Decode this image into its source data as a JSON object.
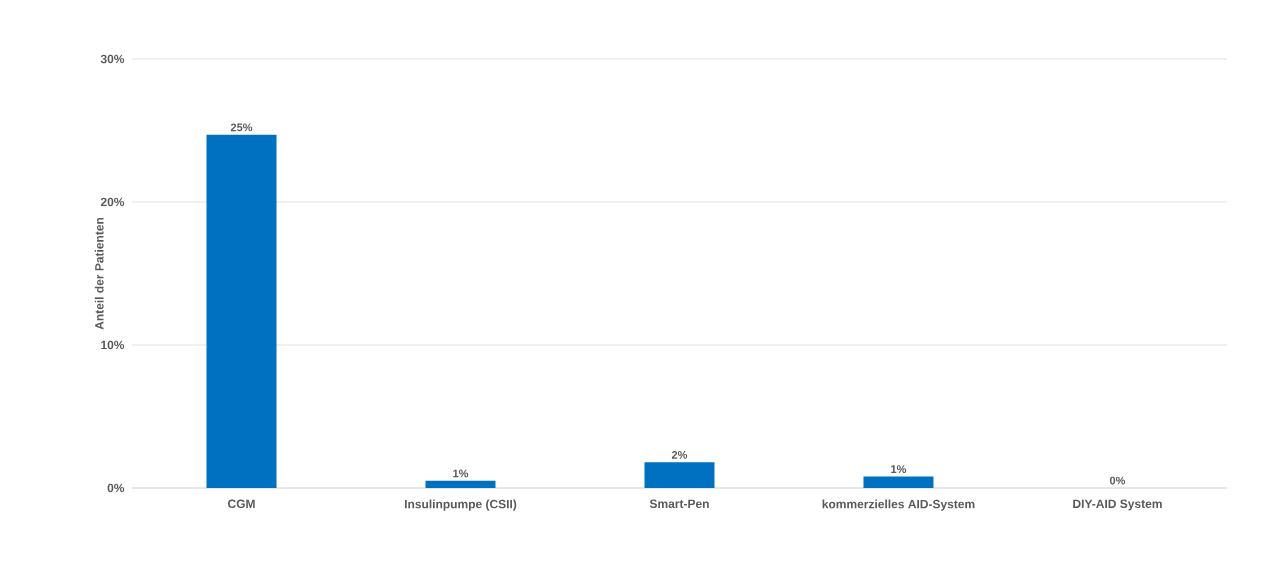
{
  "chart_data": {
    "type": "bar",
    "ylabel": "Anteil der Patienten",
    "categories": [
      "CGM",
      "Insulinpumpe (CSII)",
      "Smart-Pen",
      "kommerzielles AID-System",
      "DIY-AID System"
    ],
    "values": [
      24.7,
      0.5,
      1.8,
      0.8,
      0
    ],
    "value_labels": [
      "25%",
      "1%",
      "2%",
      "1%",
      "0%"
    ],
    "color": "#0070c0",
    "ylim": [
      0,
      30
    ],
    "yticks": [
      {
        "value": 0,
        "label": "0%"
      },
      {
        "value": 10,
        "label": "10%"
      },
      {
        "value": 20,
        "label": "20%"
      },
      {
        "value": 30,
        "label": "30%"
      }
    ],
    "grid": "y"
  }
}
